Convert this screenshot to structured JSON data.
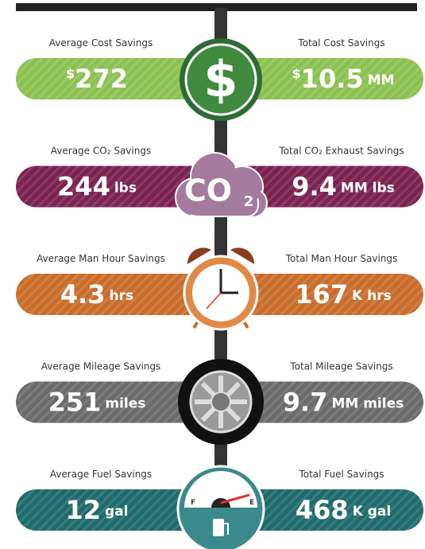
{
  "rows": [
    {
      "left_label": "Average Cost Savings",
      "left_prefix": "$",
      "left_value": "272",
      "left_unit": "",
      "right_label": "Total Cost Savings",
      "right_prefix": "$",
      "right_value": "10.5",
      "right_unit": "MM",
      "color": "#8cc152"
    },
    {
      "left_label": "Average CO₂ Savings",
      "left_prefix": "",
      "left_value": "244",
      "left_unit": "lbs",
      "right_label": "Total CO₂ Exhaust Savings",
      "right_prefix": "",
      "right_value": "9.4",
      "right_unit": "MM lbs",
      "color": "#7a2250"
    },
    {
      "left_label": "Average Man Hour Savings",
      "left_prefix": "",
      "left_value": "4.3",
      "left_unit": "hrs",
      "right_label": "Total Man Hour Savings",
      "right_prefix": "",
      "right_value": "167",
      "right_unit": "K hrs",
      "color": "#c96d2b"
    },
    {
      "left_label": "Average Mileage Savings",
      "left_prefix": "",
      "left_value": "251",
      "left_unit": "miles",
      "right_label": "Total Mileage Savings",
      "right_prefix": "",
      "right_value": "9.7",
      "right_unit": "MM miles",
      "color": "#6b6b6b"
    },
    {
      "left_label": "Average Fuel Savings",
      "left_prefix": "",
      "left_value": "12",
      "left_unit": "gal",
      "right_label": "Total Fuel Savings",
      "right_prefix": "",
      "right_value": "468",
      "right_unit": "K gal",
      "color": "#1f6a6c"
    }
  ],
  "icons": {
    "dollar": "$",
    "co2_main": "CO",
    "co2_sub": "2",
    "gauge_empty": "F",
    "gauge_full": "E"
  }
}
